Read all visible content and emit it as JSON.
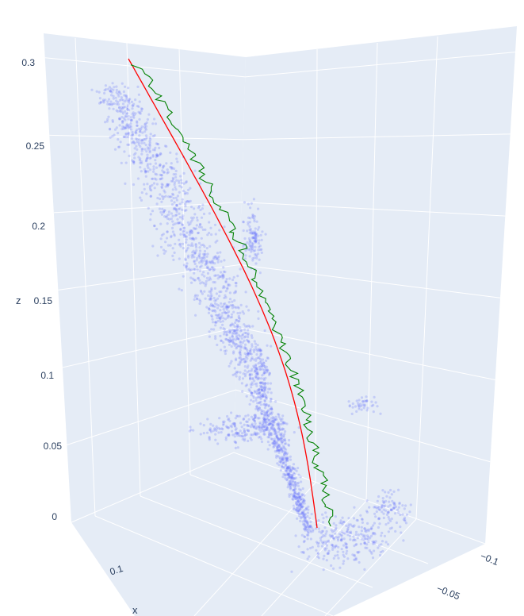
{
  "chart_data": {
    "type": "scatter",
    "subtype": "3d-scatter-with-lines",
    "background_color": "#e5ecf6",
    "grid": true,
    "axes": {
      "z": {
        "label": "z",
        "ticks": [
          "0",
          "0.05",
          "0.1",
          "0.15",
          "0.2",
          "0.25",
          "0.3"
        ]
      },
      "x": {
        "label": "x",
        "ticks": [
          "0.1"
        ]
      },
      "y": {
        "label": "",
        "ticks": [
          "−0.1",
          "−0.05"
        ]
      }
    },
    "series": [
      {
        "kind": "points",
        "color": "#636efa",
        "opacity": 0.25,
        "approx_count": 1800,
        "z_range": [
          0.0,
          0.31
        ]
      },
      {
        "kind": "line",
        "color": "#ff0000",
        "description_z_range": [
          0.0,
          0.3
        ],
        "shape": "smooth-curve"
      },
      {
        "kind": "line",
        "color": "#008000",
        "description_z_range": [
          0.0,
          0.3
        ],
        "shape": "jagged-path"
      }
    ]
  }
}
